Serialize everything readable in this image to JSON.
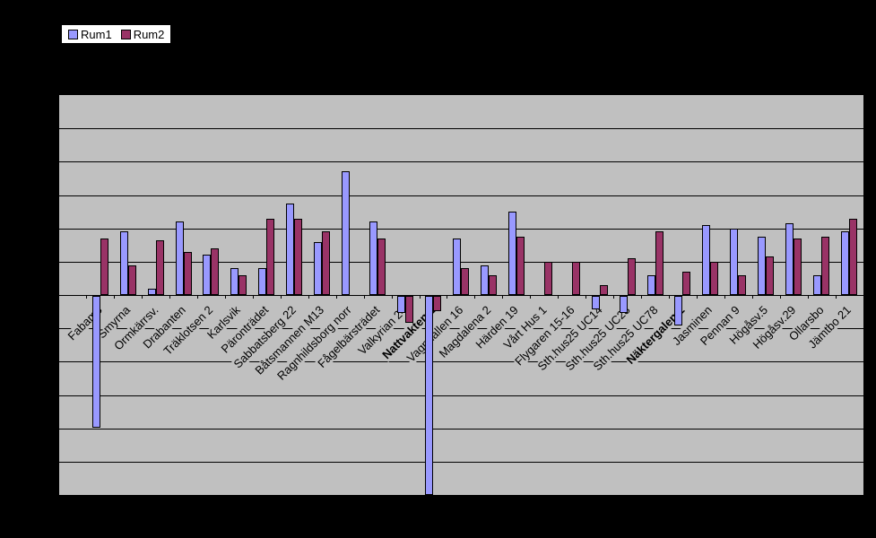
{
  "legend": {
    "series1_label": "Rum1",
    "series2_label": "Rum2"
  },
  "chart_data": {
    "type": "bar",
    "title": "",
    "xlabel": "",
    "ylabel": "",
    "categories": [
      "Fabamö",
      "Smyrna",
      "Ormkärrsv.",
      "Drabanten",
      "Träklotsen 2",
      "Karlsvik",
      "Päronträdet",
      "Sabbatsberg 22",
      "Båtsmannen M13",
      "Ragnhildsborg norr",
      "Fågelbärsträdet",
      "Valkyrian 24",
      "Nattvakten 1",
      "Vagnhallen 16",
      "Magdalena 2",
      "Härden 19",
      "Vårt Hus 1",
      "Flygaren 15-16",
      "Sth.hus25 UC14",
      "Sth.hus25 UC28",
      "Sth.hus25 UC78",
      "Näktergalen 2",
      "Jasminen",
      "Pennan 9",
      "Högåsv.5",
      "Högåsv.29",
      "Ollarsbo",
      "Jämtbo 21"
    ],
    "bold_categories": [
      "Nattvakten 1",
      "Näktergalen 2"
    ],
    "series": [
      {
        "name": "Rum1",
        "color": "#9999FF",
        "values": [
          -3.95,
          1.9,
          0.2,
          2.2,
          1.2,
          0.8,
          0.8,
          2.75,
          1.6,
          3.7,
          2.2,
          -0.5,
          -6,
          1.7,
          0.9,
          2.5,
          0,
          0,
          -0.4,
          -0.5,
          0.6,
          -0.9,
          2.1,
          2.0,
          1.75,
          2.15,
          0.6,
          1.9
        ]
      },
      {
        "name": "Rum2",
        "color": "#993366",
        "values": [
          1.7,
          0.9,
          1.65,
          1.3,
          1.4,
          0.6,
          2.3,
          2.3,
          1.9,
          0,
          1.7,
          -0.8,
          -0.45,
          0.8,
          0.6,
          1.75,
          1.0,
          1.0,
          0.3,
          1.1,
          1.9,
          0.7,
          1.0,
          0.6,
          1.15,
          1.7,
          1.75,
          2.3
        ]
      }
    ],
    "ylim": [
      -6,
      6
    ],
    "gridline_step": 1,
    "y_axis_labels_visible": false,
    "grid": true,
    "legend_position": "top-left",
    "plot_background": "#C0C0C0",
    "chart_background": "#000000"
  }
}
